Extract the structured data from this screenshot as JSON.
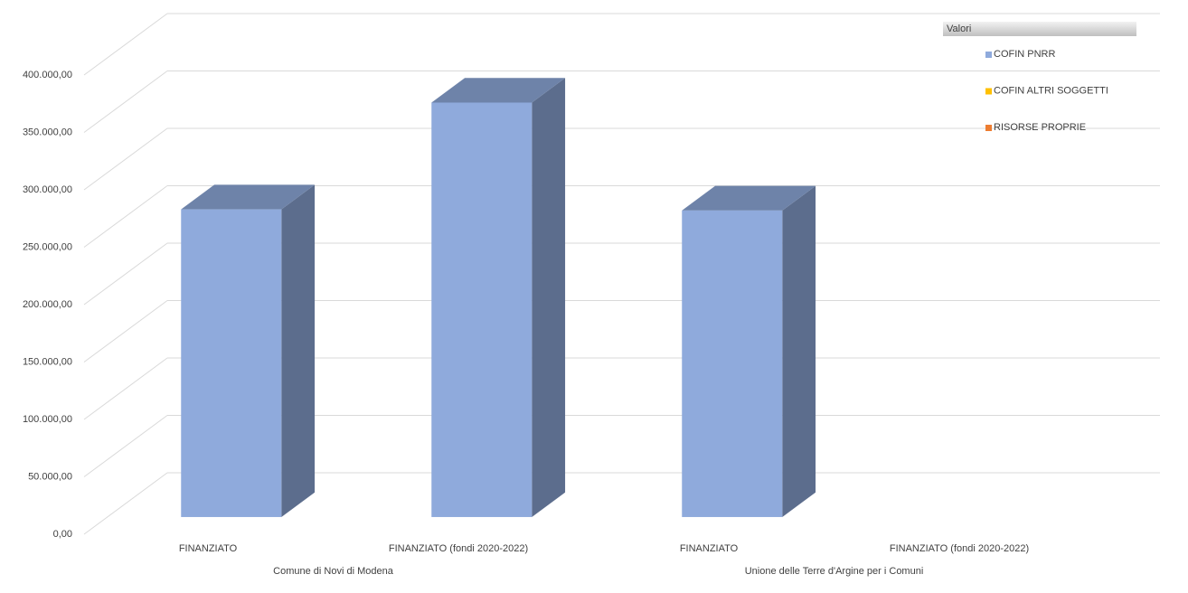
{
  "chart_data": {
    "type": "bar3d",
    "legend_title": "Valori",
    "groups": [
      {
        "label": "Comune di Novi di Modena",
        "categories": [
          "FINANZIATO",
          "FINANZIATO (fondi 2020-2022)"
        ]
      },
      {
        "label": "Unione delle Terre d'Argine per i Comuni",
        "categories": [
          "FINANZIATO",
          "FINANZIATO (fondi 2020-2022)"
        ]
      }
    ],
    "series": [
      {
        "name": "COFIN PNRR",
        "color": "#8faadc",
        "values": [
          268000,
          361000,
          267000,
          null
        ]
      },
      {
        "name": "COFIN ALTRI SOGGETTI",
        "color": "#ffc000",
        "values": [
          null,
          null,
          null,
          null
        ]
      },
      {
        "name": "RISORSE PROPRIE",
        "color": "#ed7d31",
        "values": [
          null,
          null,
          null,
          null
        ]
      }
    ],
    "ylim": [
      0,
      400000
    ],
    "yticks": [
      {
        "value": 0,
        "label": "0,00"
      },
      {
        "value": 50000,
        "label": "50.000,00"
      },
      {
        "value": 100000,
        "label": "100.000,00"
      },
      {
        "value": 150000,
        "label": "150.000,00"
      },
      {
        "value": 200000,
        "label": "200.000,00"
      },
      {
        "value": 250000,
        "label": "250.000,00"
      },
      {
        "value": 300000,
        "label": "300.000,00"
      },
      {
        "value": 350000,
        "label": "350.000,00"
      },
      {
        "value": 400000,
        "label": "400.000,00"
      }
    ],
    "grid": true
  }
}
